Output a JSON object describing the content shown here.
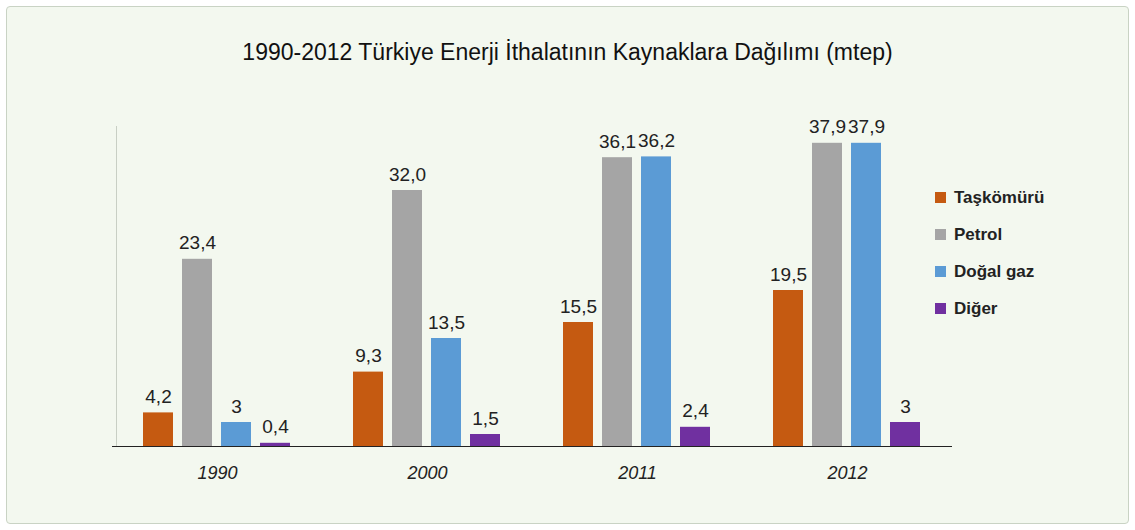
{
  "chart_data": {
    "type": "bar",
    "title": "1990-2012 Türkiye Enerji İthalatının Kaynaklara Dağılımı (mtep)",
    "categories": [
      "1990",
      "2000",
      "2011",
      "2012"
    ],
    "series": [
      {
        "name": "Taşkömürü",
        "color": "#c55a11",
        "values": [
          4.2,
          9.3,
          15.5,
          19.5
        ],
        "value_labels": [
          "4,2",
          "9,3",
          "15,5",
          "19,5"
        ]
      },
      {
        "name": "Petrol",
        "color": "#a5a5a5",
        "values": [
          23.4,
          32.0,
          36.1,
          37.9
        ],
        "value_labels": [
          "23,4",
          "32,0",
          "36,1",
          "37,9"
        ]
      },
      {
        "name": "Doğal gaz",
        "color": "#5b9bd5",
        "values": [
          3,
          13.5,
          36.2,
          37.9
        ],
        "value_labels": [
          "3",
          "13,5",
          "36,2",
          "37,9"
        ]
      },
      {
        "name": "Diğer",
        "color": "#7030a0",
        "values": [
          0.4,
          1.5,
          2.4,
          3
        ],
        "value_labels": [
          "0,4",
          "1,5",
          "2,4",
          "3"
        ]
      }
    ],
    "ylim": [
      0,
      40
    ],
    "data_labels": true,
    "tick_labels": "x",
    "legend": "right"
  }
}
